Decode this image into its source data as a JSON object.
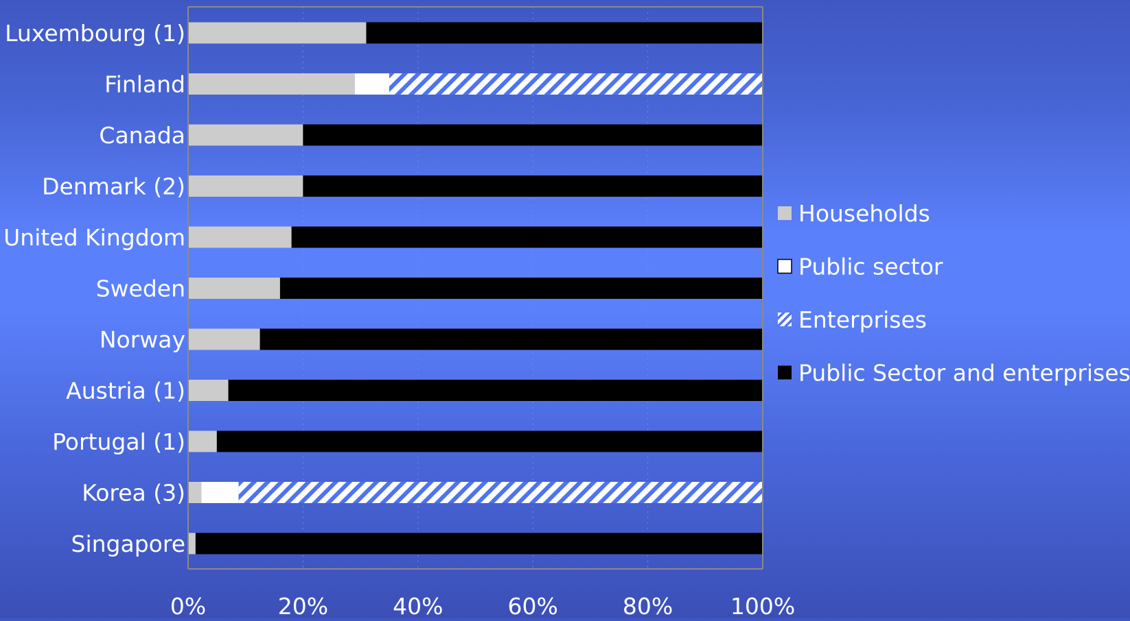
{
  "chart_data": {
    "type": "bar",
    "orientation": "horizontal",
    "stacked": "percent",
    "categories": [
      "Luxembourg (1)",
      "Finland",
      "Canada",
      "Denmark (2)",
      "United Kingdom",
      "Sweden",
      "Norway",
      "Austria (1)",
      "Portugal (1)",
      "Korea (3)",
      "Singapore"
    ],
    "series": [
      {
        "name": "Households",
        "color": "#cccccc",
        "pattern": "solid",
        "values": [
          31,
          29,
          20,
          20,
          18,
          16,
          12.5,
          7,
          5,
          2.3,
          1.3
        ]
      },
      {
        "name": "Public sector",
        "color": "#ffffff",
        "pattern": "solid",
        "values": [
          0,
          6,
          0,
          0,
          0,
          0,
          0,
          0,
          0,
          6.5,
          0
        ]
      },
      {
        "name": "Enterprises",
        "color": "#ffffff",
        "pattern": "diagonal-stripes",
        "stripe_color": "#4f73f0",
        "values": [
          0,
          65,
          0,
          0,
          0,
          0,
          0,
          0,
          0,
          91.2,
          0
        ]
      },
      {
        "name": "Public Sector and enterprises",
        "color": "#000000",
        "pattern": "solid",
        "values": [
          69,
          0,
          80,
          80,
          82,
          84,
          87.5,
          93,
          95,
          0,
          98.7
        ]
      }
    ],
    "x_ticks": [
      "0%",
      "20%",
      "40%",
      "60%",
      "80%",
      "100%"
    ],
    "xlim": [
      0,
      100
    ],
    "legend_position": "right",
    "grid": "vertical"
  }
}
